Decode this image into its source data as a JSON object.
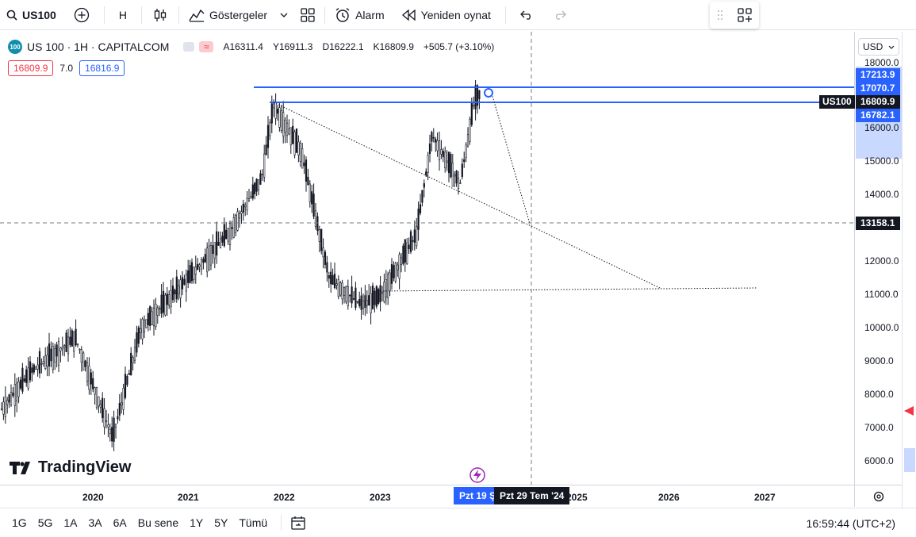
{
  "toolbar": {
    "symbol": "US100",
    "interval": "H",
    "indicators_label": "Göstergeler",
    "alert_label": "Alarm",
    "replay_label": "Yeniden oynat"
  },
  "legend": {
    "logo_text": "100",
    "title": "US 100 · 1H · CAPITALCOM",
    "open": "A16311.4",
    "high": "Y16911.3",
    "low": "D16222.1",
    "close": "K16809.9",
    "change": "+505.7 (+3.10%)",
    "sell_price": "16809.9",
    "spread": "7.0",
    "buy_price": "16816.9"
  },
  "branding": {
    "logo_text": "TradingView"
  },
  "price_axis": {
    "currency": "USD",
    "ticks": [
      "18000.0",
      "16000.0",
      "15000.0",
      "14000.0",
      "12000.0",
      "11000.0",
      "10000.0",
      "9000.0",
      "8000.0",
      "7000.0",
      "6000.0"
    ],
    "labels": {
      "level_high": "17213.9",
      "level_mid": "17070.7",
      "last_price": "16809.9",
      "level_low": "16782.1",
      "crosshair": "13158.1"
    },
    "symbol_tag": "US100"
  },
  "time_axis": {
    "ticks": [
      "2020",
      "2021",
      "2022",
      "2023",
      "2025",
      "2026",
      "2027"
    ],
    "range_start_label": "Pzt 19 Ş",
    "crosshair_label": "Pzt 29 Tem '24"
  },
  "bottom": {
    "ranges": [
      "1G",
      "5G",
      "1A",
      "3A",
      "6A",
      "Bu sene",
      "1Y",
      "5Y",
      "Tümü"
    ],
    "clock": "16:59:44 (UTC+2)"
  },
  "colors": {
    "accent": "#2962ff",
    "up": "#131722",
    "down": "#131722",
    "sell": "#f23645",
    "buy": "#2962ff"
  },
  "chart_data": {
    "type": "line",
    "symbol": "US100",
    "interval": "1H",
    "ylim": [
      5500,
      18500
    ],
    "x": [
      "2019-10",
      "2020-01",
      "2020-02",
      "2020-03",
      "2020-06",
      "2020-09",
      "2021-01",
      "2021-06",
      "2021-11",
      "2022-01",
      "2022-06",
      "2022-10",
      "2022-12",
      "2023-03",
      "2023-07",
      "2023-10",
      "2024-01",
      "2024-03",
      "2024-07"
    ],
    "series": [
      {
        "values": [
          7500,
          8700,
          9700,
          6700,
          10000,
          11300,
          12900,
          14500,
          16700,
          15300,
          11500,
          10700,
          10900,
          12800,
          15800,
          14300,
          16800,
          17000,
          16809.9
        ]
      }
    ],
    "horizontal_levels": [
      17213.9,
      16809.9,
      13158.1
    ]
  }
}
